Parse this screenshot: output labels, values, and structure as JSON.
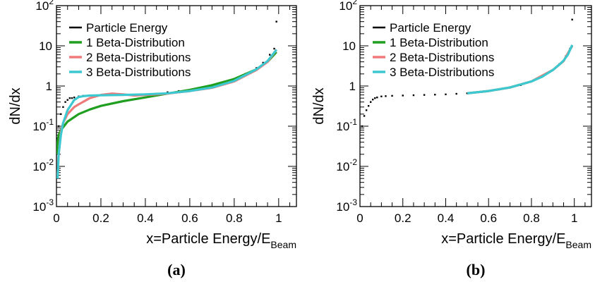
{
  "chart_data": [
    {
      "type": "line",
      "panel_label": "(a)",
      "xlabel": {
        "main": "x=Particle Energy/E",
        "sub": "Beam"
      },
      "ylabel": "dN/dx",
      "xlim": [
        0,
        1.08
      ],
      "ylim": [
        0.001,
        100
      ],
      "yscale": "log",
      "x_ticks": [
        "0",
        "0.2",
        "0.4",
        "0.6",
        "0.8",
        "1"
      ],
      "y_ticks": [
        {
          "base": "10",
          "exp": "-3"
        },
        {
          "base": "10",
          "exp": "-2"
        },
        {
          "base": "10",
          "exp": "-1"
        },
        {
          "base": "1",
          "exp": ""
        },
        {
          "base": "10",
          "exp": ""
        },
        {
          "base": "10",
          "exp": "2"
        }
      ],
      "grid": false,
      "legend_position": "top-left",
      "series": [
        {
          "name": "Particle Energy",
          "color": "#000000",
          "style": "points",
          "x": [
            0.005,
            0.01,
            0.02,
            0.03,
            0.04,
            0.05,
            0.06,
            0.07,
            0.08,
            0.1,
            0.12,
            0.15,
            0.2,
            0.25,
            0.3,
            0.35,
            0.4,
            0.45,
            0.5,
            0.55,
            0.6,
            0.65,
            0.7,
            0.75,
            0.8,
            0.85,
            0.9,
            0.93,
            0.96,
            0.98,
            0.99
          ],
          "y": [
            0.05,
            0.1,
            0.2,
            0.3,
            0.4,
            0.45,
            0.5,
            0.5,
            0.52,
            0.55,
            0.57,
            0.58,
            0.59,
            0.6,
            0.6,
            0.61,
            0.62,
            0.65,
            0.7,
            0.75,
            0.8,
            0.9,
            1.0,
            1.2,
            1.5,
            2.0,
            2.8,
            3.8,
            6.0,
            8.5,
            40
          ]
        },
        {
          "name": "1 Beta-Distribution",
          "color": "#1f9e1f",
          "style": "line",
          "x": [
            0.001,
            0.005,
            0.01,
            0.02,
            0.05,
            0.1,
            0.15,
            0.2,
            0.3,
            0.4,
            0.5,
            0.6,
            0.7,
            0.8,
            0.9,
            0.95,
            0.99
          ],
          "y": [
            0.02,
            0.04,
            0.06,
            0.08,
            0.13,
            0.2,
            0.26,
            0.32,
            0.42,
            0.52,
            0.65,
            0.8,
            1.05,
            1.5,
            2.6,
            4.0,
            7.0
          ]
        },
        {
          "name": "2 Beta-Distributions",
          "color": "#f07a7a",
          "style": "line",
          "x": [
            0.005,
            0.01,
            0.02,
            0.03,
            0.05,
            0.08,
            0.1,
            0.15,
            0.2,
            0.25,
            0.3,
            0.35,
            0.4,
            0.45,
            0.5,
            0.6,
            0.7,
            0.8,
            0.9,
            0.95,
            0.99
          ],
          "y": [
            0.006,
            0.02,
            0.07,
            0.12,
            0.2,
            0.3,
            0.35,
            0.5,
            0.6,
            0.65,
            0.62,
            0.58,
            0.6,
            0.62,
            0.65,
            0.75,
            0.9,
            1.3,
            2.5,
            4.0,
            8.0
          ]
        },
        {
          "name": "3 Beta-Distributions",
          "color": "#3cc8d0",
          "style": "line",
          "x": [
            0.005,
            0.01,
            0.02,
            0.03,
            0.05,
            0.08,
            0.1,
            0.12,
            0.15,
            0.2,
            0.3,
            0.4,
            0.5,
            0.6,
            0.7,
            0.8,
            0.9,
            0.95,
            0.99
          ],
          "y": [
            0.005,
            0.02,
            0.06,
            0.12,
            0.25,
            0.45,
            0.53,
            0.56,
            0.58,
            0.59,
            0.6,
            0.62,
            0.66,
            0.75,
            0.92,
            1.35,
            2.6,
            4.2,
            8.0
          ]
        }
      ]
    },
    {
      "type": "line",
      "panel_label": "(b)",
      "xlabel": {
        "main": "x=Particle Energy/E",
        "sub": "Beam"
      },
      "ylabel": "dN/dx",
      "xlim": [
        0,
        1.08
      ],
      "ylim": [
        0.001,
        100
      ],
      "yscale": "log",
      "x_ticks": [
        "0",
        "0.2",
        "0.4",
        "0.6",
        "0.8",
        "1"
      ],
      "y_ticks": [
        {
          "base": "10",
          "exp": "-3"
        },
        {
          "base": "10",
          "exp": "-2"
        },
        {
          "base": "10",
          "exp": "-1"
        },
        {
          "base": "1",
          "exp": ""
        },
        {
          "base": "10",
          "exp": ""
        },
        {
          "base": "10",
          "exp": "2"
        }
      ],
      "grid": false,
      "legend_position": "top-left",
      "series": [
        {
          "name": "Particle Energy",
          "color": "#000000",
          "style": "points",
          "x": [
            0.01,
            0.02,
            0.03,
            0.04,
            0.05,
            0.06,
            0.07,
            0.08,
            0.1,
            0.12,
            0.15,
            0.2,
            0.25,
            0.3,
            0.35,
            0.4,
            0.45,
            0.5,
            0.55,
            0.6,
            0.65,
            0.7,
            0.75,
            0.8,
            0.85,
            0.9,
            0.93,
            0.96,
            0.98,
            0.99
          ],
          "y": [
            0.1,
            0.18,
            0.25,
            0.32,
            0.4,
            0.46,
            0.5,
            0.52,
            0.55,
            0.56,
            0.57,
            0.58,
            0.59,
            0.6,
            0.61,
            0.62,
            0.64,
            0.66,
            0.7,
            0.75,
            0.82,
            0.92,
            1.05,
            1.3,
            1.7,
            2.5,
            3.5,
            5.5,
            8.5,
            45
          ]
        },
        {
          "name": "1 Beta-Distribution",
          "color": "#1f9e1f",
          "style": "line",
          "x": [
            0.5,
            0.6,
            0.7,
            0.8,
            0.9,
            0.95,
            0.99
          ],
          "y": [
            0.66,
            0.75,
            0.92,
            1.3,
            2.5,
            4.2,
            10
          ]
        },
        {
          "name": "2 Beta-Distributions",
          "color": "#f07a7a",
          "style": "line",
          "x": [
            0.5,
            0.6,
            0.7,
            0.8,
            0.9,
            0.95,
            0.99
          ],
          "y": [
            0.66,
            0.75,
            0.92,
            1.3,
            2.5,
            4.2,
            10
          ]
        },
        {
          "name": "3 Beta-Distributions",
          "color": "#3cc8d0",
          "style": "line",
          "x": [
            0.5,
            0.6,
            0.7,
            0.8,
            0.85,
            0.9,
            0.93,
            0.95,
            0.97,
            0.99
          ],
          "y": [
            0.66,
            0.75,
            0.92,
            1.3,
            1.7,
            2.5,
            3.4,
            4.3,
            6.0,
            10.5
          ]
        }
      ]
    }
  ]
}
